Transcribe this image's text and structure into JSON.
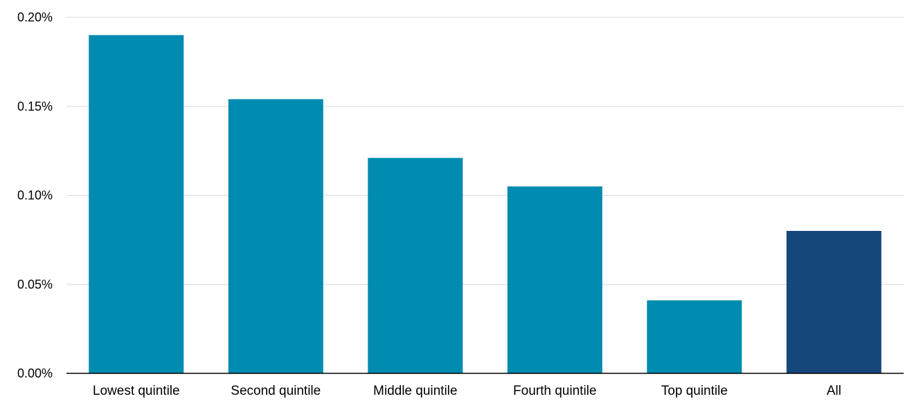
{
  "chart_data": {
    "type": "bar",
    "title": "",
    "xlabel": "",
    "ylabel": "",
    "categories": [
      "Lowest quintile",
      "Second quintile",
      "Middle quintile",
      "Fourth quintile",
      "Top quintile",
      "All"
    ],
    "values": [
      0.19,
      0.154,
      0.121,
      0.105,
      0.041,
      0.08
    ],
    "bar_colors": [
      "#008bb0",
      "#008bb0",
      "#008bb0",
      "#008bb0",
      "#008bb0",
      "#16477a"
    ],
    "ylim": [
      0,
      0.2
    ],
    "yticks": [
      0,
      0.05,
      0.1,
      0.15,
      0.2
    ],
    "ytick_labels": [
      "0.00%",
      "0.05%",
      "0.10%",
      "0.15%",
      "0.20%"
    ],
    "grid": true,
    "legend": "none"
  }
}
